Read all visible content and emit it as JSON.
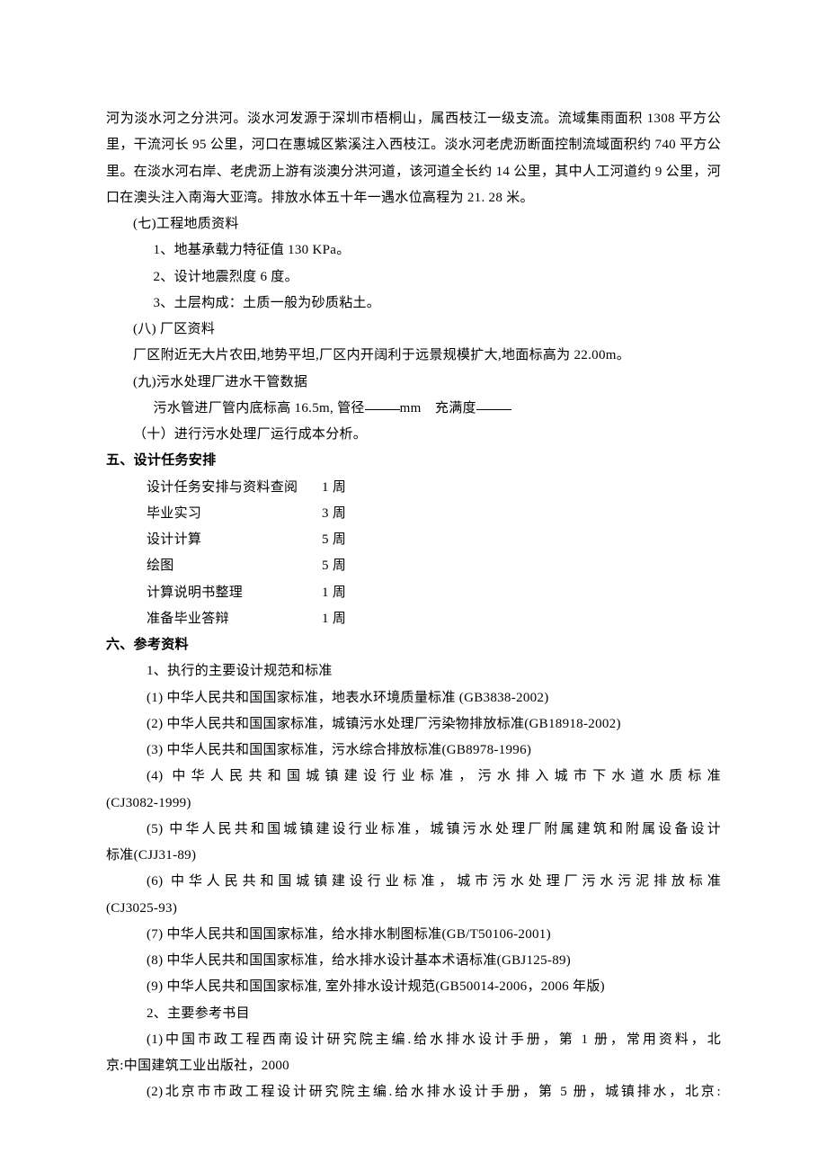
{
  "colors": {
    "text": "#000000",
    "background": "#ffffff"
  },
  "typography": {
    "body_fontsize_pt": 12,
    "heading_fontsize_pt": 12,
    "heading_weight": "bold",
    "line_height": 1.95,
    "font_family": "SimSun"
  },
  "body_top": "河为淡水河之分洪河。淡水河发源于深圳市梧桐山，属西枝江一级支流。流域集雨面积 1308 平方公里，干流河长 95 公里，河口在惠城区紫溪注入西枝江。淡水河老虎沥断面控制流域面积约 740 平方公里。在淡水河右岸、老虎沥上游有淡澳分洪河道，该河道全长约 14 公里，其中人工河道约 9 公里，河口在澳头注入南海大亚湾。排放水体五十年一遇水位高程为 21. 28 米。",
  "sec7": {
    "title": "(七)工程地质资料",
    "items": [
      "1、地基承载力特征值 130 KPa。",
      "2、设计地震烈度 6 度。",
      "3、土层构成：土质一般为砂质粘土。"
    ]
  },
  "sec8": {
    "title": "(八) 厂区资料",
    "text": "厂区附近无大片农田,地势平坦,厂区内开阔利于远景规模扩大,地面标高为 22.00m。"
  },
  "sec9": {
    "title": "(九)污水处理厂进水干管数据",
    "text_pre": "污水管进厂管内底标高 16.5m, 管径",
    "text_mid": "mm　充满度"
  },
  "sec10": {
    "title": "（十）进行污水处理厂运行成本分析。"
  },
  "section5": {
    "heading": "五、设计任务安排",
    "rows": [
      {
        "task": "设计任务安排与资料查阅",
        "dur": "1 周"
      },
      {
        "task": "毕业实习",
        "dur": "3 周"
      },
      {
        "task": "设计计算",
        "dur": "5 周"
      },
      {
        "task": "绘图",
        "dur": "5 周"
      },
      {
        "task": "计算说明书整理",
        "dur": "1 周"
      },
      {
        "task": "准备毕业答辩",
        "dur": "1 周"
      }
    ]
  },
  "section6": {
    "heading": "六、参考资料",
    "sub1_title": "1、执行的主要设计规范和标准",
    "standards": [
      "(1) 中华人民共和国国家标准，地表水环境质量标准 (GB3838-2002)",
      "(2) 中华人民共和国国家标准，城镇污水处理厂污染物排放标准(GB18918-2002)",
      "(3) 中华人民共和国国家标准，污水综合排放标准(GB8978-1996)"
    ],
    "std4_a": "(4) 中华人民共和国城镇建设行业标准，污水排入城市下水道水质标准",
    "std4_b": "(CJ3082-1999)",
    "std5_a": "(5) 中华人民共和国城镇建设行业标准，城镇污水处理厂附属建筑和附属设备设计",
    "std5_b": "标准(CJJ31-89)",
    "std6_a": "(6) 中华人民共和国城镇建设行业标准，城市污水处理厂污水污泥排放标准",
    "std6_b": "(CJ3025-93)",
    "standards_tail": [
      "(7) 中华人民共和国国家标准，给水排水制图标准(GB/T50106-2001)",
      "(8) 中华人民共和国国家标准，给水排水设计基本术语标准(GBJ125-89)",
      "(9) 中华人民共和国国家标准, 室外排水设计规范(GB50014-2006，2006 年版)"
    ],
    "sub2_title": "2、主要参考书目",
    "book1_a": "(1)中国市政工程西南设计研究院主编.给水排水设计手册，第 1 册，常用资料，北",
    "book1_b": "京:中国建筑工业出版社，2000",
    "book2": "(2)北京市市政工程设计研究院主编.给水排水设计手册，第 5 册，城镇排水，北京:"
  }
}
